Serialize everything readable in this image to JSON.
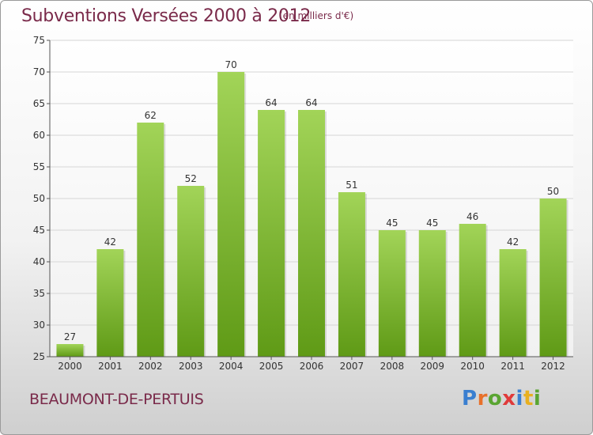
{
  "header": {
    "title": "Subventions Versées 2000 à 2012",
    "unit_note": "(en milliers d'€)"
  },
  "footer": {
    "commune": "BEAUMONT-DE-PERTUIS",
    "logo_text": "Proxiti",
    "logo_colors": [
      "#3a7fd0",
      "#e8702a",
      "#5aa532",
      "#e03a3a",
      "#3a7fd0",
      "#e8b020",
      "#5aa532"
    ]
  },
  "colors": {
    "title": "#7a2a4a",
    "bar_light": "#a2d458",
    "bar_dark": "#5f9a16",
    "grid": "#d6d6d6"
  },
  "chart_data": {
    "type": "bar",
    "title": "Subventions Versées 2000 à 2012",
    "subtitle": "(en milliers d'€)",
    "xlabel": "",
    "ylabel": "",
    "categories": [
      "2000",
      "2001",
      "2002",
      "2003",
      "2004",
      "2005",
      "2006",
      "2007",
      "2008",
      "2009",
      "2010",
      "2011",
      "2012"
    ],
    "values": [
      27,
      42,
      62,
      52,
      70,
      64,
      64,
      51,
      45,
      45,
      46,
      42,
      50
    ],
    "ylim": [
      25,
      75
    ],
    "yticks": [
      25,
      30,
      35,
      40,
      45,
      50,
      55,
      60,
      65,
      70,
      75
    ],
    "grid": true,
    "data_labels": true
  }
}
